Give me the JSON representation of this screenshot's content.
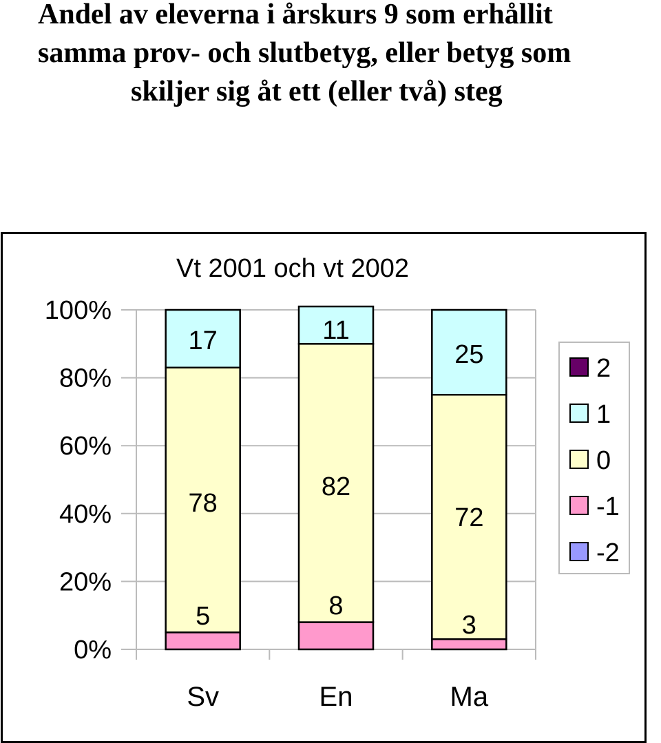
{
  "page": {
    "title_lines": [
      "Andel av eleverna i årskurs 9 som erhållit",
      "samma prov- och slutbetyg, eller betyg som",
      "skiljer sig åt ett (eller två) steg"
    ]
  },
  "colors": {
    "2": "#660066",
    "1": "#ccffff",
    "0": "#ffffcc",
    "-1": "#ff99cc",
    "-2": "#9999ff"
  },
  "chart_data": {
    "type": "bar",
    "stacked": true,
    "percent": true,
    "title": "Vt 2001 och vt 2002",
    "categories": [
      "Sv",
      "En",
      "Ma"
    ],
    "series": [
      {
        "name": "-2",
        "values": [
          0,
          0,
          0
        ]
      },
      {
        "name": "-1",
        "values": [
          5,
          8,
          3
        ]
      },
      {
        "name": "0",
        "values": [
          78,
          82,
          72
        ]
      },
      {
        "name": "1",
        "values": [
          17,
          11,
          25
        ]
      },
      {
        "name": "2",
        "values": [
          0,
          0,
          0
        ]
      }
    ],
    "legend_order": [
      "2",
      "1",
      "0",
      "-1",
      "-2"
    ],
    "yticks": [
      "0%",
      "20%",
      "40%",
      "60%",
      "80%",
      "100%"
    ],
    "ylim": [
      0,
      100
    ],
    "grid": true,
    "legend": "right"
  }
}
